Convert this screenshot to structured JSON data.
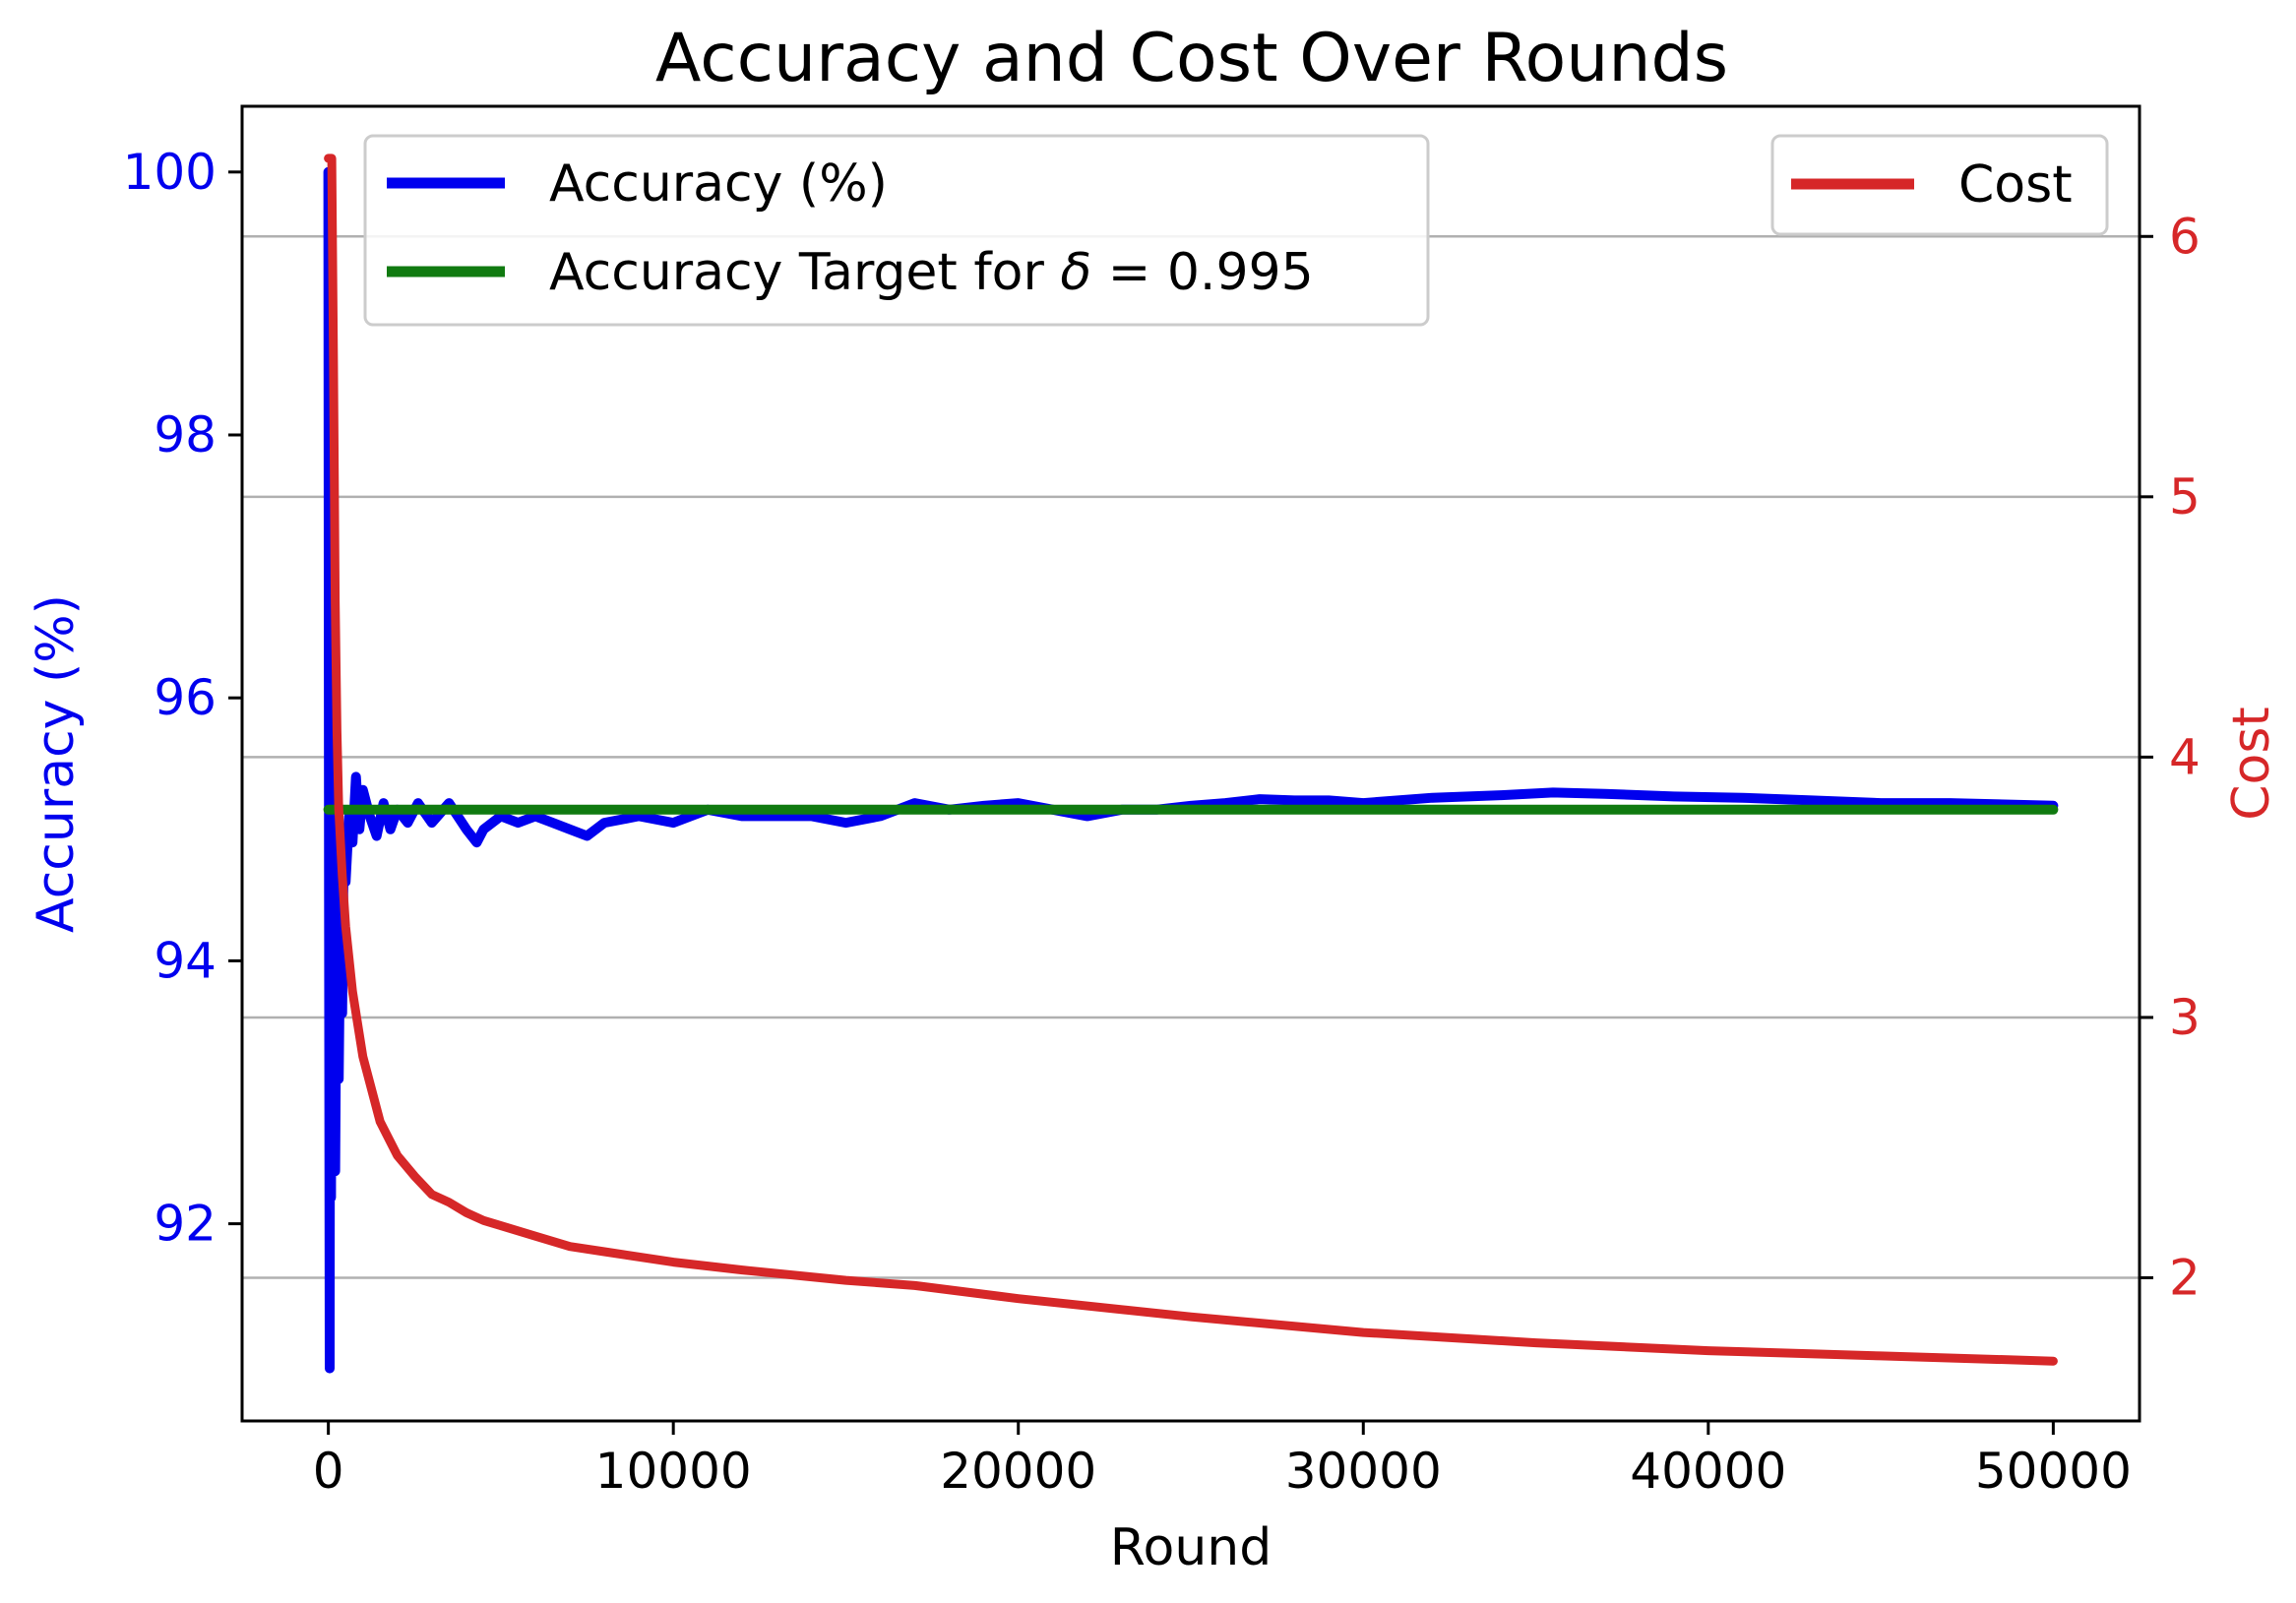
{
  "chart_data": {
    "type": "line",
    "title": "Accuracy and Cost Over Rounds",
    "xlabel": "Round",
    "ylabel_left": "Accuracy (%)",
    "ylabel_right": "Cost",
    "xlim": [
      -2500,
      52500
    ],
    "ylim_left": [
      90.5,
      100.5
    ],
    "ylim_right": [
      1.45,
      6.5
    ],
    "x_ticks": [
      "0",
      "10000",
      "20000",
      "30000",
      "40000",
      "50000"
    ],
    "y_left_ticks": [
      "92",
      "94",
      "96",
      "98",
      "100"
    ],
    "y_right_ticks": [
      "2",
      "3",
      "4",
      "5",
      "6"
    ],
    "grid": "horizontal on right axis",
    "colors": {
      "accuracy": "#0000ee",
      "target": "#107a10",
      "cost": "#d62728",
      "left_axis_text": "#0000ee",
      "right_axis_text": "#d62728"
    },
    "series": [
      {
        "name": "Accuracy (%)",
        "axis": "left",
        "x": [
          0,
          20,
          40,
          60,
          80,
          100,
          130,
          160,
          200,
          250,
          300,
          350,
          400,
          450,
          500,
          600,
          700,
          800,
          900,
          1000,
          1200,
          1400,
          1600,
          1800,
          2000,
          2300,
          2600,
          3000,
          3500,
          4000,
          4300,
          4500,
          5000,
          5500,
          6000,
          6500,
          7000,
          7500,
          8000,
          9000,
          10000,
          11000,
          12000,
          13000,
          14000,
          15000,
          16000,
          17000,
          18000,
          19000,
          20000,
          21000,
          22000,
          23000,
          24000,
          25000,
          26000,
          27000,
          28000,
          29000,
          30000,
          32000,
          34000,
          35500,
          37000,
          39000,
          41000,
          43000,
          45000,
          47000,
          50000
        ],
        "y": [
          100,
          94.5,
          90.9,
          96.8,
          92.2,
          95.2,
          93.3,
          94.8,
          92.4,
          94.6,
          93.1,
          94.4,
          93.6,
          95.0,
          94.6,
          95.1,
          94.9,
          95.4,
          95.0,
          95.3,
          95.1,
          94.95,
          95.2,
          95.0,
          95.15,
          95.05,
          95.2,
          95.05,
          95.2,
          95.0,
          94.9,
          95.0,
          95.1,
          95.05,
          95.1,
          95.05,
          95.0,
          94.95,
          95.05,
          95.1,
          95.05,
          95.15,
          95.1,
          95.1,
          95.1,
          95.05,
          95.1,
          95.2,
          95.15,
          95.18,
          95.2,
          95.15,
          95.1,
          95.15,
          95.15,
          95.18,
          95.2,
          95.23,
          95.22,
          95.22,
          95.2,
          95.24,
          95.26,
          95.28,
          95.27,
          95.25,
          95.24,
          95.22,
          95.2,
          95.2,
          95.18
        ]
      },
      {
        "name": "Accuracy Target for δ = 0.995",
        "axis": "left",
        "x": [
          0,
          50000
        ],
        "y": [
          95.15,
          95.15
        ]
      },
      {
        "name": "Cost",
        "axis": "right",
        "x": [
          0,
          100,
          150,
          200,
          250,
          300,
          400,
          500,
          700,
          1000,
          1500,
          2000,
          2500,
          3000,
          3500,
          4000,
          4500,
          5000,
          6000,
          7000,
          8000,
          10000,
          12000,
          15000,
          17000,
          20000,
          25000,
          30000,
          35000,
          40000,
          45000,
          50000
        ],
        "y": [
          6.3,
          6.3,
          5.5,
          4.6,
          4.1,
          3.8,
          3.55,
          3.35,
          3.1,
          2.85,
          2.6,
          2.47,
          2.39,
          2.32,
          2.29,
          2.25,
          2.22,
          2.2,
          2.16,
          2.12,
          2.1,
          2.06,
          2.03,
          1.99,
          1.97,
          1.92,
          1.85,
          1.79,
          1.75,
          1.72,
          1.7,
          1.68
        ]
      }
    ],
    "legend_left": {
      "items": [
        {
          "text": "Accuracy (%)"
        },
        {
          "text_pre": "Accuracy Target for ",
          "text_sym": "δ",
          "text_post": " = 0.995"
        }
      ],
      "placement": "top-left"
    },
    "legend_right": {
      "items": [
        {
          "text": "Cost"
        }
      ],
      "placement": "top-right"
    }
  }
}
